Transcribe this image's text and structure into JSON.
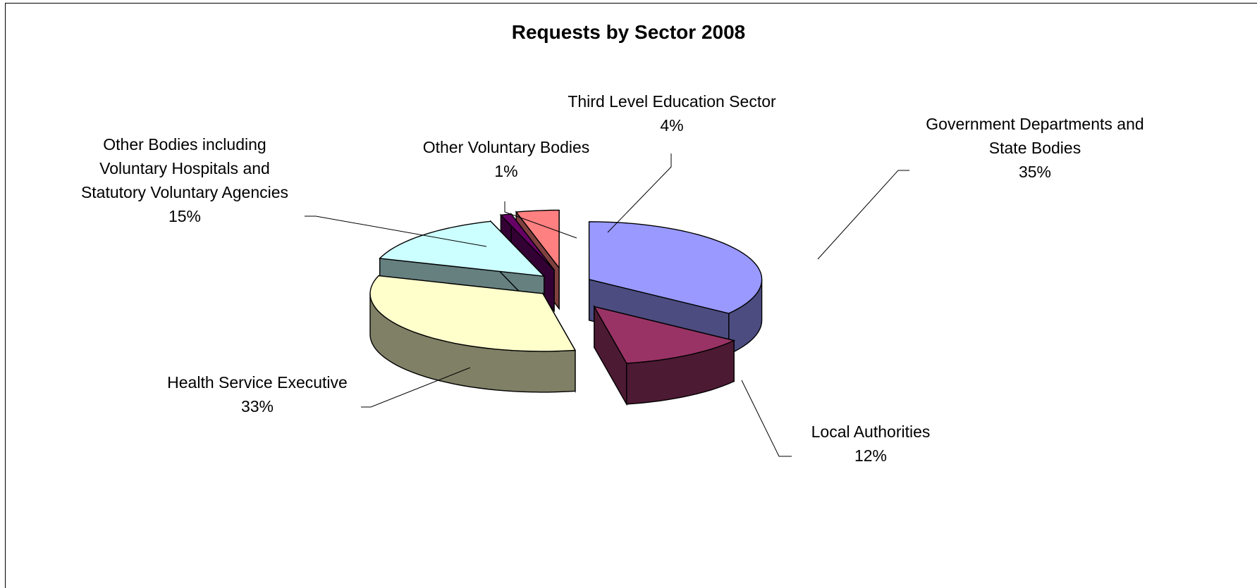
{
  "chart_data": {
    "type": "pie",
    "style": "3d-exploded",
    "title": "Requests by Sector 2008",
    "legend": "none",
    "slices": [
      {
        "name": "Government Departments and State Bodies",
        "label_lines": [
          "Government Departments and",
          "State Bodies"
        ],
        "percent_label": "35%",
        "value": 35,
        "top_color": "#9999ff",
        "side_color": "#4c4c80"
      },
      {
        "name": "Local Authorities",
        "label_lines": [
          "Local Authorities"
        ],
        "percent_label": "12%",
        "value": 12,
        "top_color": "#993366",
        "side_color": "#4d1a33"
      },
      {
        "name": "Health Service Executive",
        "label_lines": [
          "Health Service Executive"
        ],
        "percent_label": "33%",
        "value": 33,
        "top_color": "#ffffcc",
        "side_color": "#808066"
      },
      {
        "name": "Other Bodies including Voluntary Hospitals and Statutory Voluntary Agencies",
        "label_lines": [
          "Other Bodies including",
          "Voluntary Hospitals and",
          "Statutory Voluntary Agencies"
        ],
        "percent_label": "15%",
        "value": 15,
        "top_color": "#ccffff",
        "side_color": "#668080"
      },
      {
        "name": "Other Voluntary Bodies",
        "label_lines": [
          "Other Voluntary Bodies"
        ],
        "percent_label": "1%",
        "value": 1,
        "top_color": "#660066",
        "side_color": "#330033"
      },
      {
        "name": "Third Level Education Sector",
        "label_lines": [
          "Third Level Education Sector"
        ],
        "percent_label": "4%",
        "value": 4,
        "top_color": "#ff8080",
        "side_color": "#804040"
      }
    ]
  }
}
